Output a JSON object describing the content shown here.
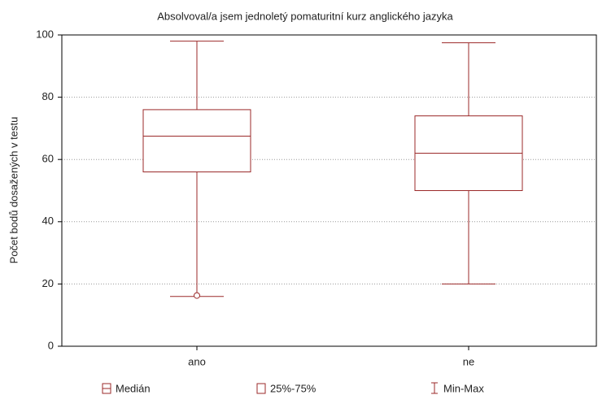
{
  "chart_data": {
    "type": "box",
    "title": "Absolvoval/a jsem jednoletý pomaturitní kurz anglického jazyka",
    "ylabel": "Počet bodů dosažených v testu",
    "categories": [
      "ano",
      "ne"
    ],
    "boxes": [
      {
        "min": 16,
        "q1": 56,
        "median": 67.5,
        "q3": 76,
        "max": 98,
        "outliers": [
          16.3
        ]
      },
      {
        "min": 20,
        "q1": 50,
        "median": 62,
        "q3": 74,
        "max": 97.5,
        "outliers": []
      }
    ],
    "color": "#9b2a2a",
    "ylim": [
      0,
      100
    ],
    "yticks": [
      0,
      20,
      40,
      60,
      80,
      100
    ],
    "grid": true,
    "legend": [
      "Medián",
      "25%-75%",
      "Min-Max"
    ],
    "legend_position": "bottom"
  }
}
